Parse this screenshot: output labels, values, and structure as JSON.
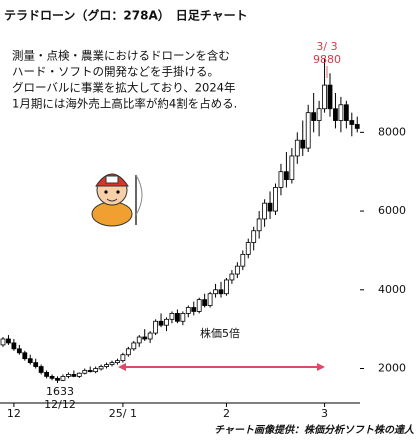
{
  "chart_data": {
    "type": "candlestick",
    "title": "テラドローン（グロ：278A）　日足チャート",
    "note": [
      "測量・点検・農業におけるドローンを含む",
      "ハード・ソフトの開発などを手掛ける。",
      "グローバルに事業を拡大しており、2024年",
      "1月期には海外売上高比率が約4割を占める."
    ],
    "credit": "チャート画像提供：株価分析ソフト株の達人",
    "categories": [
      null,
      null,
      "12",
      null,
      null,
      null,
      null,
      null,
      null,
      null,
      null,
      null,
      null,
      null,
      null,
      null,
      null,
      null,
      null,
      null,
      null,
      null,
      "25/ 1",
      null,
      null,
      null,
      null,
      null,
      null,
      null,
      null,
      null,
      null,
      null,
      null,
      null,
      null,
      null,
      null,
      null,
      null,
      "2",
      null,
      null,
      null,
      null,
      null,
      null,
      null,
      null,
      null,
      null,
      null,
      null,
      null,
      null,
      null,
      null,
      null,
      "3",
      null,
      null,
      null,
      null,
      null,
      null
    ],
    "open": [
      2600,
      2750,
      2650,
      2500,
      2400,
      2250,
      2150,
      2050,
      1900,
      1800,
      1750,
      1700,
      1800,
      1850,
      1800,
      1880,
      1950,
      1920,
      1990,
      2050,
      2100,
      2150,
      2200,
      2350,
      2500,
      2650,
      2800,
      2750,
      2900,
      3200,
      3100,
      3250,
      3400,
      3200,
      3400,
      3550,
      3450,
      3750,
      3600,
      3900,
      4000,
      3900,
      4250,
      4400,
      4600,
      4900,
      5200,
      5500,
      5800,
      6200,
      6000,
      6600,
      7000,
      6800,
      7400,
      7800,
      7600,
      8500,
      8300,
      8600,
      9200,
      8600,
      8300,
      8700,
      8300,
      8200
    ],
    "high": [
      2800,
      2850,
      2750,
      2600,
      2450,
      2350,
      2250,
      2100,
      1950,
      1850,
      1800,
      1850,
      1900,
      1950,
      1900,
      2000,
      2050,
      2050,
      2100,
      2150,
      2200,
      2250,
      2400,
      2550,
      2700,
      2850,
      3000,
      2950,
      3250,
      3400,
      3300,
      3450,
      3500,
      3450,
      3600,
      3700,
      3800,
      3900,
      3950,
      4150,
      4200,
      4300,
      4500,
      4700,
      5000,
      5300,
      5600,
      6000,
      6300,
      6500,
      6700,
      7200,
      7500,
      7600,
      8000,
      8300,
      8700,
      9000,
      8800,
      9880,
      9500,
      9000,
      8900,
      8800,
      8500,
      8400
    ],
    "low": [
      2550,
      2600,
      2450,
      2350,
      2200,
      2100,
      2000,
      1850,
      1750,
      1700,
      1633,
      1680,
      1750,
      1780,
      1760,
      1850,
      1900,
      1880,
      1950,
      2000,
      2050,
      2100,
      2150,
      2300,
      2450,
      2550,
      2700,
      2650,
      2850,
      3050,
      2950,
      3150,
      3150,
      3100,
      3300,
      3350,
      3400,
      3550,
      3550,
      3800,
      3800,
      3850,
      4150,
      4300,
      4500,
      4800,
      5000,
      5300,
      5600,
      5800,
      5900,
      6400,
      6600,
      6700,
      7200,
      7400,
      7500,
      8000,
      7900,
      8500,
      8400,
      8100,
      8000,
      8100,
      7900,
      8000
    ],
    "close": [
      2750,
      2650,
      2500,
      2400,
      2250,
      2150,
      2050,
      1900,
      1800,
      1750,
      1700,
      1800,
      1850,
      1800,
      1880,
      1950,
      1920,
      2000,
      2050,
      2100,
      2150,
      2200,
      2350,
      2500,
      2650,
      2800,
      2750,
      2900,
      3200,
      3100,
      3250,
      3400,
      3200,
      3400,
      3550,
      3450,
      3750,
      3600,
      3900,
      4000,
      3900,
      4250,
      4400,
      4600,
      4900,
      5200,
      5500,
      5800,
      6200,
      6000,
      6600,
      7000,
      6800,
      7400,
      7800,
      7600,
      8500,
      8300,
      8600,
      9200,
      8600,
      8300,
      8700,
      8300,
      8200,
      8100
    ],
    "up_color": "#ffffff",
    "down_color": "#000000",
    "ylim": [
      1200,
      10600
    ],
    "yticks": [
      2000,
      4000,
      6000,
      8000
    ],
    "annotations": [
      {
        "text": "3/ 3",
        "color": "#d63a4a"
      },
      {
        "text": "9880",
        "color": "#d63a4a"
      },
      {
        "text": "1633",
        "color": "#111111"
      },
      {
        "text": "12/12",
        "color": "#111111"
      },
      {
        "text": "株価5倍",
        "color": "#111111"
      }
    ],
    "arrow_color": "#e0486a"
  }
}
